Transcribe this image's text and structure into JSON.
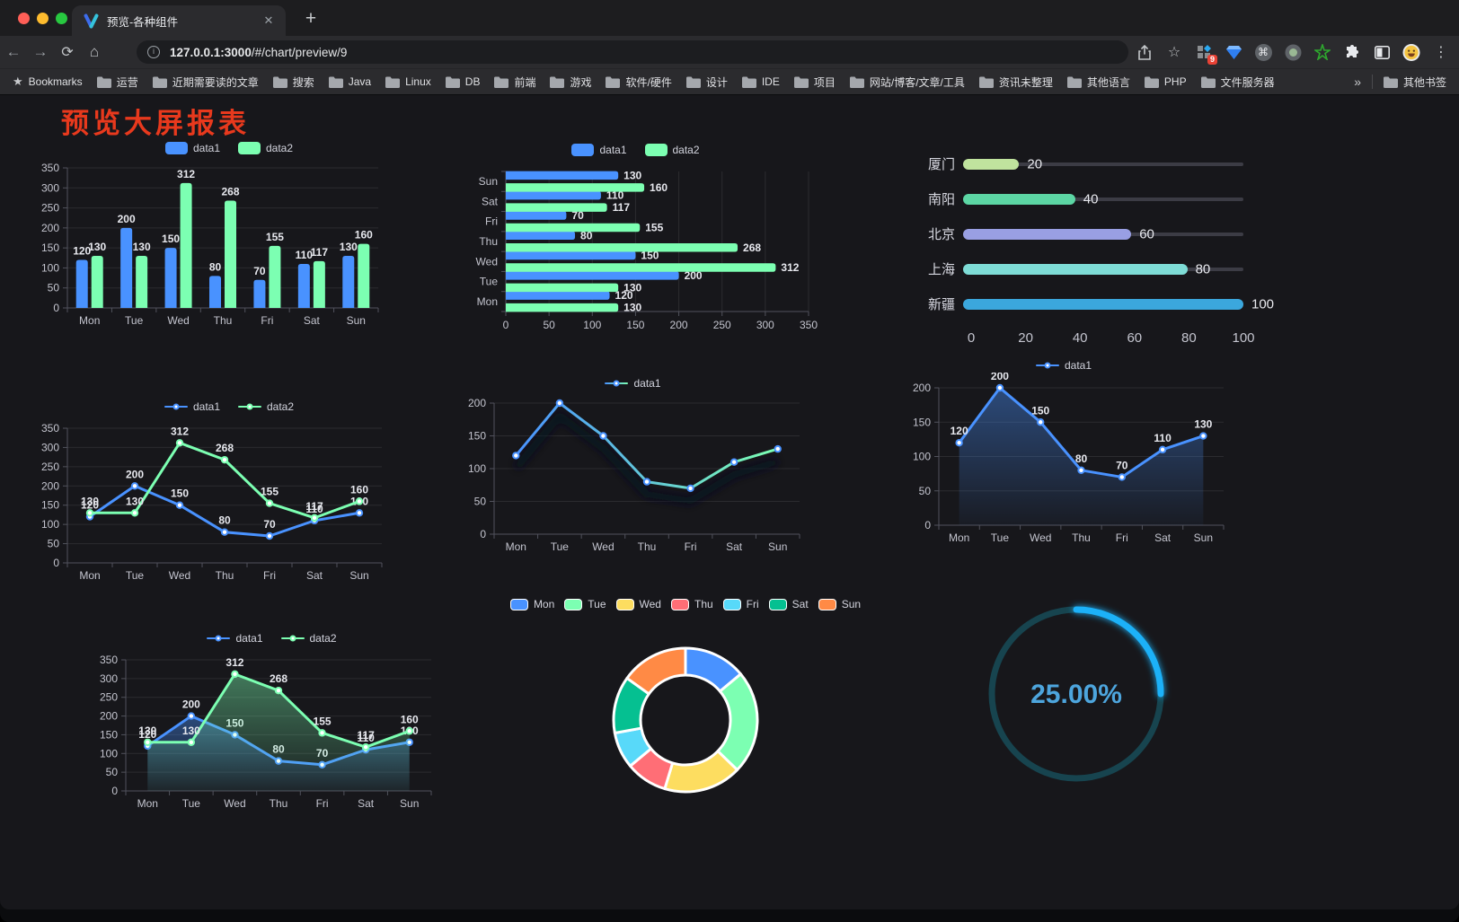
{
  "browser": {
    "tab_title": "预览-各种组件",
    "url_host": "127.0.0.1:3000",
    "url_path": "/#/chart/preview/9",
    "extensions_badge": "9",
    "icons": {
      "back": "←",
      "forward": "→",
      "reload": "⟳",
      "home": "⌂",
      "close": "✕",
      "new_tab": "+",
      "menu": "⋮",
      "star": "☆",
      "root_star": "★",
      "info": "i",
      "command": "⌘",
      "overflow": "»"
    },
    "bookmarks_bar": {
      "root_label": "Bookmarks",
      "folders": [
        "运营",
        "近期需要读的文章",
        "搜索",
        "Java",
        "Linux",
        "DB",
        "前端",
        "游戏",
        "软件/硬件",
        "设计",
        "IDE",
        "项目",
        "网站/博客/文章/工具",
        "资讯未整理",
        "其他语言",
        "PHP",
        "文件服务器"
      ],
      "other_label": "其他书签"
    }
  },
  "page": {
    "title": "预览大屏报表",
    "title_color": "#e8391d",
    "background": "#17171b"
  },
  "chart_data": [
    {
      "id": "c1",
      "type": "bar",
      "legend_position": "top",
      "grid": true,
      "data_labels": true,
      "categories": [
        "Mon",
        "Tue",
        "Wed",
        "Thu",
        "Fri",
        "Sat",
        "Sun"
      ],
      "ylim": [
        0,
        350
      ],
      "yticks": [
        0,
        50,
        100,
        150,
        200,
        250,
        300,
        350
      ],
      "series": [
        {
          "name": "data1",
          "color": "#4992ff",
          "values": [
            120,
            200,
            150,
            80,
            70,
            110,
            130
          ]
        },
        {
          "name": "data2",
          "color": "#7cffb2",
          "values": [
            130,
            130,
            312,
            268,
            155,
            117,
            160
          ]
        }
      ]
    },
    {
      "id": "c2",
      "type": "bar-horizontal",
      "legend_position": "top",
      "grid": true,
      "data_labels": true,
      "categories": [
        "Mon",
        "Tue",
        "Wed",
        "Thu",
        "Fri",
        "Sat",
        "Sun"
      ],
      "category_axis_note": "Sun at top, Mon at bottom",
      "xlim": [
        0,
        350
      ],
      "xticks": [
        0,
        50,
        100,
        150,
        200,
        250,
        300,
        350
      ],
      "series": [
        {
          "name": "data1",
          "color": "#4992ff",
          "values": [
            120,
            200,
            150,
            80,
            70,
            110,
            130
          ]
        },
        {
          "name": "data2",
          "color": "#7cffb2",
          "values": [
            130,
            130,
            312,
            268,
            155,
            117,
            160
          ]
        }
      ]
    },
    {
      "id": "c3",
      "type": "progress-bar",
      "xlim": [
        0,
        100
      ],
      "xticks": [
        0,
        20,
        40,
        60,
        80,
        100
      ],
      "rows": [
        {
          "label": "厦门",
          "value": 20,
          "color": "#c0e39e"
        },
        {
          "label": "南阳",
          "value": 40,
          "color": "#5cd6a4"
        },
        {
          "label": "北京",
          "value": 60,
          "color": "#999fe3"
        },
        {
          "label": "上海",
          "value": 80,
          "color": "#7edcd6"
        },
        {
          "label": "新疆",
          "value": 100,
          "color": "#3ba7dd"
        }
      ]
    },
    {
      "id": "c4",
      "type": "line",
      "legend_position": "top",
      "grid": true,
      "data_labels": true,
      "markers": true,
      "categories": [
        "Mon",
        "Tue",
        "Wed",
        "Thu",
        "Fri",
        "Sat",
        "Sun"
      ],
      "ylim": [
        0,
        350
      ],
      "yticks": [
        0,
        50,
        100,
        150,
        200,
        250,
        300,
        350
      ],
      "series": [
        {
          "name": "data1",
          "color": "#4992ff",
          "values": [
            120,
            200,
            150,
            80,
            70,
            110,
            130
          ]
        },
        {
          "name": "data2",
          "color": "#7cffb2",
          "values": [
            130,
            130,
            312,
            268,
            155,
            117,
            160
          ]
        }
      ]
    },
    {
      "id": "c5",
      "type": "line",
      "legend_position": "top",
      "grid": true,
      "data_labels": false,
      "markers": true,
      "shadow": true,
      "categories": [
        "Mon",
        "Tue",
        "Wed",
        "Thu",
        "Fri",
        "Sat",
        "Sun"
      ],
      "ylim": [
        0,
        200
      ],
      "yticks": [
        0,
        50,
        100,
        150,
        200
      ],
      "series": [
        {
          "name": "data1",
          "color": "#4992ff",
          "gradient_end_color": "#7cffb2",
          "values": [
            120,
            200,
            150,
            80,
            70,
            110,
            130
          ]
        }
      ]
    },
    {
      "id": "c6",
      "type": "line",
      "legend_position": "top",
      "grid": true,
      "data_labels": true,
      "markers": true,
      "categories": [
        "Mon",
        "Tue",
        "Wed",
        "Thu",
        "Fri",
        "Sat",
        "Sun"
      ],
      "ylim": [
        0,
        200
      ],
      "yticks": [
        0,
        50,
        100,
        150,
        200
      ],
      "series": [
        {
          "name": "data1",
          "color": "#4992ff",
          "area": true,
          "values": [
            120,
            200,
            150,
            80,
            70,
            110,
            130
          ]
        }
      ]
    },
    {
      "id": "c7",
      "type": "line",
      "legend_position": "top",
      "grid": true,
      "data_labels": true,
      "markers": true,
      "categories": [
        "Mon",
        "Tue",
        "Wed",
        "Thu",
        "Fri",
        "Sat",
        "Sun"
      ],
      "ylim": [
        0,
        350
      ],
      "yticks": [
        0,
        50,
        100,
        150,
        200,
        250,
        300,
        350
      ],
      "series": [
        {
          "name": "data1",
          "color": "#4992ff",
          "area": true,
          "values": [
            120,
            200,
            150,
            80,
            70,
            110,
            130
          ]
        },
        {
          "name": "data2",
          "color": "#7cffb2",
          "area": true,
          "values": [
            130,
            130,
            312,
            268,
            155,
            117,
            160
          ]
        }
      ]
    },
    {
      "id": "c8",
      "type": "donut",
      "legend_position": "top",
      "categories": [
        "Mon",
        "Tue",
        "Wed",
        "Thu",
        "Fri",
        "Sat",
        "Sun"
      ],
      "values": [
        120,
        200,
        150,
        80,
        70,
        110,
        130
      ],
      "colors": [
        "#4992ff",
        "#7cffb2",
        "#fddd60",
        "#ff6e76",
        "#58d9f9",
        "#05c091",
        "#ff8a45"
      ]
    },
    {
      "id": "c9",
      "type": "gauge",
      "label": "25.00%",
      "percent": 25,
      "progress_color": "#1db1f8",
      "track_color": "#17444f",
      "text_color": "#4da5dd"
    }
  ]
}
